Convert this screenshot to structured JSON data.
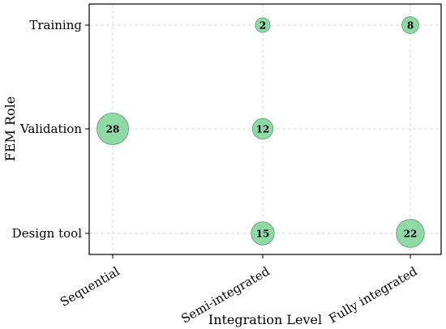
{
  "chart_data": {
    "type": "scatter",
    "subtype": "bubble",
    "xlabel": "Integration Level",
    "ylabel": "FEM Role",
    "x_categories": [
      "Sequential",
      "Semi-integrated",
      "Fully integrated"
    ],
    "y_categories": [
      "Design tool",
      "Validation",
      "Training"
    ],
    "points": [
      {
        "x": "Semi-integrated",
        "y": "Training",
        "value": 2
      },
      {
        "x": "Fully integrated",
        "y": "Training",
        "value": 8
      },
      {
        "x": "Sequential",
        "y": "Validation",
        "value": 28
      },
      {
        "x": "Semi-integrated",
        "y": "Validation",
        "value": 12
      },
      {
        "x": "Semi-integrated",
        "y": "Design tool",
        "value": 15
      },
      {
        "x": "Fully integrated",
        "y": "Design tool",
        "value": 22
      }
    ],
    "grid": true,
    "colors": {
      "bubble_fill": "#8fd9a6",
      "bubble_stroke": "#5a9a6c",
      "grid": "#d9d9d9"
    }
  }
}
